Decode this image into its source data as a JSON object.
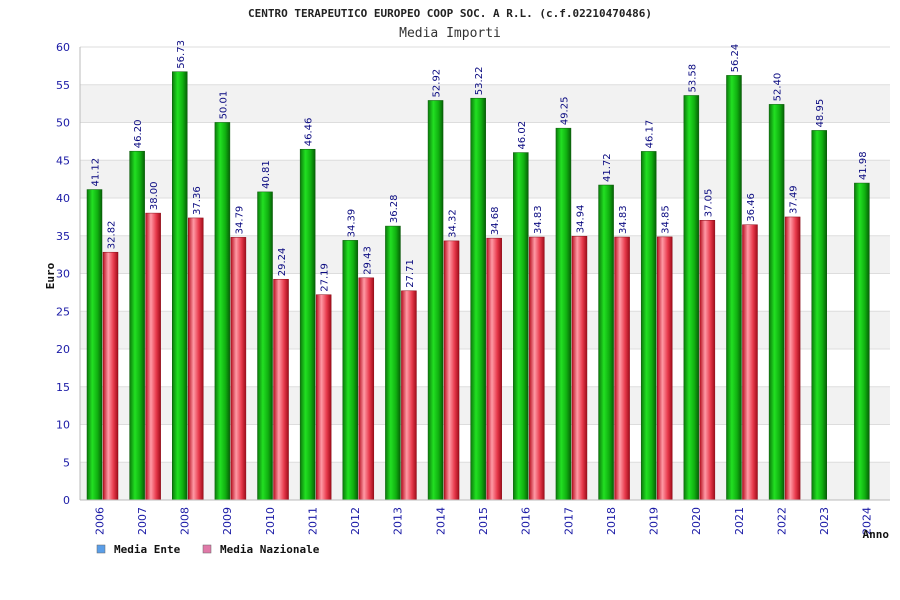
{
  "chart_data": {
    "type": "bar",
    "title": "CENTRO TERAPEUTICO EUROPEO COOP SOC. A R.L. (c.f.02210470486)",
    "subtitle": "Media Importi",
    "xlabel": "Anno",
    "ylabel": "Euro",
    "ylim": [
      0,
      60
    ],
    "yticks": [
      0,
      5,
      10,
      15,
      20,
      25,
      30,
      35,
      40,
      45,
      50,
      55,
      60
    ],
    "grid": true,
    "legend_position": "bottom-left",
    "categories": [
      "2006",
      "2007",
      "2008",
      "2009",
      "2010",
      "2011",
      "2012",
      "2013",
      "2014",
      "2015",
      "2016",
      "2017",
      "2018",
      "2019",
      "2020",
      "2021",
      "2022",
      "2023",
      "2024"
    ],
    "series": [
      {
        "name": "Media Ente",
        "color": "#00b800",
        "legend_color": "#5a9ee8",
        "values": [
          41.12,
          46.2,
          56.73,
          50.01,
          40.81,
          46.46,
          34.39,
          36.28,
          52.92,
          53.22,
          46.02,
          49.25,
          41.72,
          46.17,
          53.58,
          56.24,
          52.4,
          48.95,
          41.98
        ],
        "labels": [
          "41.12",
          "46.20",
          "56.73",
          "50.01",
          "40.81",
          "46.46",
          "34.39",
          "36.28",
          "52.92",
          "53.22",
          "46.02",
          "49.25",
          "41.72",
          "46.17",
          "53.58",
          "56.24",
          "52.40",
          "48.95",
          "41.98"
        ]
      },
      {
        "name": "Media Nazionale",
        "color": "#e8283c",
        "legend_color": "#e079a8",
        "values": [
          32.82,
          38.0,
          37.36,
          34.79,
          29.24,
          27.19,
          29.43,
          27.71,
          34.32,
          34.68,
          34.83,
          34.94,
          34.83,
          34.85,
          37.05,
          36.46,
          37.49,
          null,
          null
        ],
        "labels": [
          "32.82",
          "38.00",
          "37.36",
          "34.79",
          "29.24",
          "27.19",
          "29.43",
          "27.71",
          "34.32",
          "34.68",
          "34.83",
          "34.94",
          "34.83",
          "34.85",
          "37.05",
          "36.46",
          "37.49",
          null,
          null
        ]
      }
    ]
  }
}
